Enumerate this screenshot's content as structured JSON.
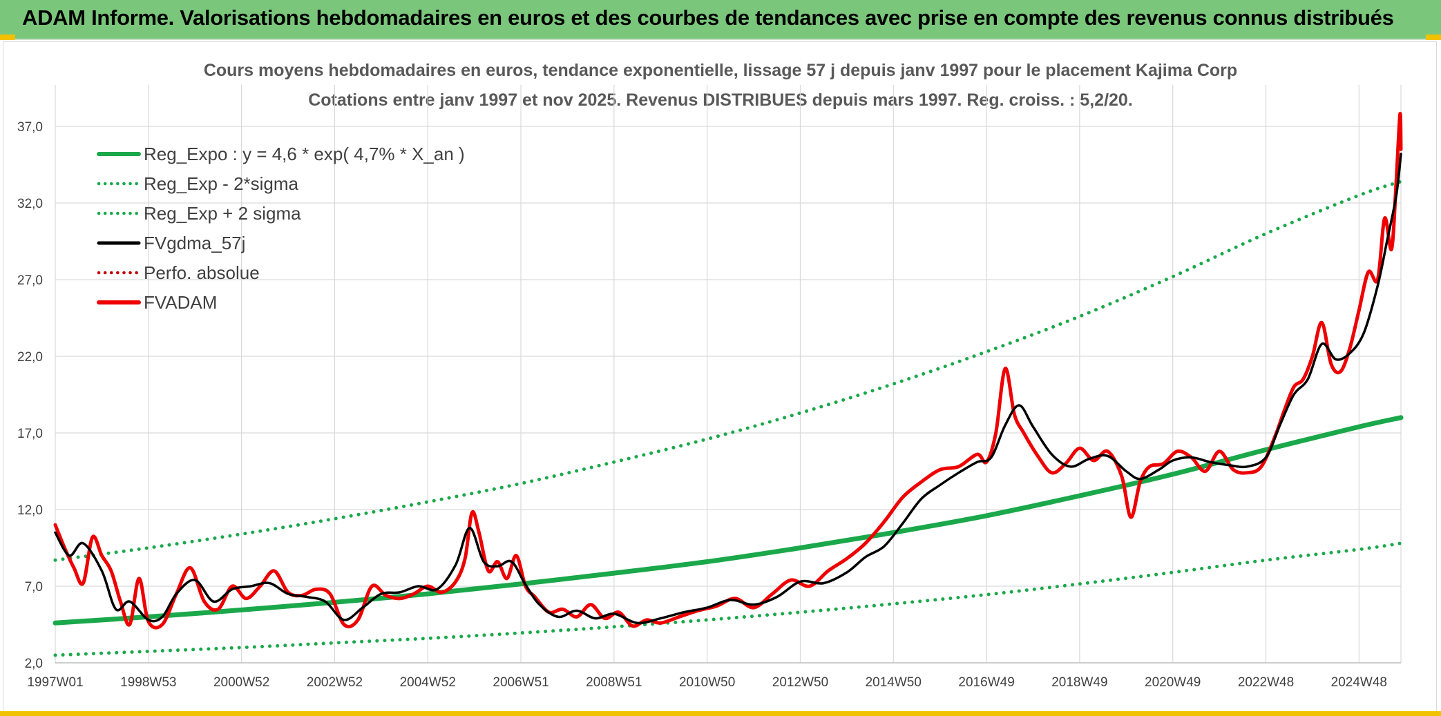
{
  "banner": {
    "title": "ADAM Informe. Valorisations hebdomadaires en euros et des courbes de tendances avec prise en compte des revenus connus distribués"
  },
  "colors": {
    "banner_bg": "#7ac77b",
    "reg_expo": "#1aa84b",
    "sigma_bands": "#1aa84b",
    "fvgdma": "#000000",
    "perfo": "#c00000",
    "fvadam": "#ee0000",
    "grid": "#d9d9d9"
  },
  "chart_data": {
    "type": "line",
    "title": "Cours moyens hebdomadaires en euros, tendance exponentielle, lissage 57 j depuis janv 1997 pour le placement Kajima Corp",
    "subtitle": "Cotations entre janv 1997 et nov 2025. Revenus DISTRIBUES depuis mars 1997. Reg. croiss. : 5,2/20.",
    "xlabel": "",
    "ylabel": "",
    "x_range": [
      1997.0,
      2025.9
    ],
    "ylim": [
      2.0,
      37.0
    ],
    "y_ticks": [
      "2,0",
      "7,0",
      "12,0",
      "17,0",
      "22,0",
      "27,0",
      "32,0",
      "37,0"
    ],
    "y_tick_values": [
      2,
      7,
      12,
      17,
      22,
      27,
      32,
      37
    ],
    "x_tick_labels": [
      "1997W01",
      "1998W53",
      "2000W52",
      "2002W52",
      "2004W52",
      "2006W51",
      "2008W51",
      "2010W50",
      "2012W50",
      "2014W50",
      "2016W49",
      "2018W49",
      "2020W49",
      "2022W48",
      "2024W48"
    ],
    "x_tick_values": [
      1997.0,
      1999.0,
      2001.0,
      2003.0,
      2005.0,
      2007.0,
      2009.0,
      2011.0,
      2013.0,
      2015.0,
      2017.0,
      2019.0,
      2021.0,
      2023.0,
      2025.0
    ],
    "grid": true,
    "legend_position": "top-left",
    "legend": [
      {
        "label": "Reg_Expo : y = 4,6 * exp( 4,7% *  X_an )",
        "style": "solid-thick",
        "color_key": "reg_expo"
      },
      {
        "label": "Reg_Exp - 2*sigma",
        "style": "dotted",
        "color_key": "sigma_bands"
      },
      {
        "label": "Reg_Exp + 2 sigma",
        "style": "dotted",
        "color_key": "sigma_bands"
      },
      {
        "label": "FVgdma_57j",
        "style": "solid",
        "color_key": "fvgdma"
      },
      {
        "label": "Perfo. absolue",
        "style": "dotted",
        "color_key": "perfo"
      },
      {
        "label": "FVADAM",
        "style": "solid-thick",
        "color_key": "fvadam"
      }
    ],
    "series": [
      {
        "name": "Reg_Expo : y = 4,6 * exp( 4,7% *  X_an )",
        "x": [
          1997.0,
          1999.0,
          2001.0,
          2003.0,
          2005.0,
          2007.0,
          2009.0,
          2011.0,
          2013.0,
          2015.0,
          2017.0,
          2019.0,
          2021.0,
          2023.0,
          2025.0,
          2025.9
        ],
        "y": [
          4.6,
          5.0,
          5.45,
          5.95,
          6.5,
          7.15,
          7.85,
          8.6,
          9.5,
          10.5,
          11.6,
          12.9,
          14.3,
          15.9,
          17.4,
          18.0
        ]
      },
      {
        "name": "Reg_Exp - 2*sigma",
        "x": [
          1997.0,
          1999.0,
          2001.0,
          2003.0,
          2005.0,
          2007.0,
          2009.0,
          2011.0,
          2013.0,
          2015.0,
          2017.0,
          2019.0,
          2021.0,
          2023.0,
          2025.0,
          2025.9
        ],
        "y": [
          2.5,
          2.75,
          3.0,
          3.3,
          3.6,
          3.95,
          4.35,
          4.8,
          5.3,
          5.85,
          6.45,
          7.15,
          7.9,
          8.7,
          9.4,
          9.8
        ]
      },
      {
        "name": "Reg_Exp + 2 sigma",
        "x": [
          1997.0,
          1999.0,
          2001.0,
          2003.0,
          2005.0,
          2007.0,
          2009.0,
          2011.0,
          2013.0,
          2015.0,
          2017.0,
          2019.0,
          2021.0,
          2023.0,
          2025.0,
          2025.9
        ],
        "y": [
          8.7,
          9.5,
          10.4,
          11.4,
          12.5,
          13.7,
          15.1,
          16.6,
          18.3,
          20.2,
          22.3,
          24.6,
          27.2,
          30.0,
          32.5,
          33.4
        ]
      },
      {
        "name": "FVgdma_57j",
        "x": [
          1997.0,
          1997.3,
          1997.6,
          1998.0,
          1998.3,
          1998.6,
          1999.0,
          1999.3,
          1999.6,
          2000.0,
          2000.4,
          2000.8,
          2001.2,
          2001.6,
          2002.0,
          2002.4,
          2002.8,
          2003.2,
          2003.6,
          2004.0,
          2004.4,
          2004.8,
          2005.2,
          2005.6,
          2005.9,
          2006.2,
          2006.5,
          2006.8,
          2007.1,
          2007.4,
          2007.8,
          2008.2,
          2008.6,
          2009.0,
          2009.5,
          2010.0,
          2010.5,
          2011.0,
          2011.5,
          2012.0,
          2012.5,
          2013.0,
          2013.5,
          2014.0,
          2014.4,
          2014.8,
          2015.2,
          2015.6,
          2016.0,
          2016.4,
          2016.8,
          2017.1,
          2017.4,
          2017.7,
          2018.0,
          2018.4,
          2018.8,
          2019.2,
          2019.6,
          2020.0,
          2020.3,
          2020.7,
          2021.0,
          2021.4,
          2021.8,
          2022.2,
          2022.6,
          2023.0,
          2023.3,
          2023.6,
          2023.9,
          2024.2,
          2024.5,
          2024.8,
          2025.1,
          2025.4,
          2025.6,
          2025.8,
          2025.9
        ],
        "y": [
          10.5,
          9.0,
          9.8,
          8.0,
          5.5,
          6.0,
          4.8,
          5.0,
          6.5,
          7.4,
          6.0,
          6.8,
          7.0,
          7.2,
          6.5,
          6.3,
          6.0,
          4.8,
          5.6,
          6.5,
          6.6,
          7.0,
          6.8,
          8.4,
          10.8,
          8.6,
          8.3,
          8.6,
          7.1,
          5.8,
          5.0,
          5.4,
          4.9,
          5.2,
          4.6,
          4.9,
          5.3,
          5.6,
          6.1,
          5.8,
          6.3,
          7.3,
          7.2,
          7.9,
          8.9,
          9.6,
          11.1,
          12.7,
          13.6,
          14.4,
          15.1,
          15.4,
          17.5,
          18.8,
          17.4,
          15.6,
          14.8,
          15.3,
          15.5,
          14.5,
          14.0,
          14.6,
          15.2,
          15.4,
          15.1,
          14.9,
          14.8,
          15.4,
          17.5,
          19.5,
          20.5,
          22.8,
          21.8,
          22.2,
          23.5,
          26.6,
          29.5,
          32.5,
          35.2
        ]
      },
      {
        "name": "FVADAM",
        "x": [
          1997.0,
          1997.2,
          1997.4,
          1997.6,
          1997.8,
          1998.0,
          1998.2,
          1998.4,
          1998.6,
          1998.8,
          1999.0,
          1999.3,
          1999.6,
          1999.9,
          2000.2,
          2000.5,
          2000.8,
          2001.1,
          2001.4,
          2001.7,
          2002.0,
          2002.3,
          2002.6,
          2002.9,
          2003.2,
          2003.5,
          2003.8,
          2004.1,
          2004.4,
          2004.7,
          2005.0,
          2005.3,
          2005.6,
          2005.8,
          2005.95,
          2006.1,
          2006.3,
          2006.5,
          2006.7,
          2006.9,
          2007.1,
          2007.3,
          2007.6,
          2007.9,
          2008.2,
          2008.5,
          2008.8,
          2009.1,
          2009.4,
          2009.7,
          2010.0,
          2010.4,
          2010.8,
          2011.2,
          2011.6,
          2012.0,
          2012.4,
          2012.8,
          2013.2,
          2013.6,
          2014.0,
          2014.4,
          2014.8,
          2015.2,
          2015.6,
          2016.0,
          2016.4,
          2016.8,
          2017.0,
          2017.2,
          2017.4,
          2017.6,
          2017.8,
          2018.1,
          2018.4,
          2018.7,
          2019.0,
          2019.3,
          2019.6,
          2019.9,
          2020.1,
          2020.3,
          2020.5,
          2020.8,
          2021.1,
          2021.4,
          2021.7,
          2022.0,
          2022.3,
          2022.6,
          2022.9,
          2023.2,
          2023.4,
          2023.6,
          2023.8,
          2024.0,
          2024.2,
          2024.4,
          2024.6,
          2024.8,
          2025.0,
          2025.2,
          2025.4,
          2025.55,
          2025.7,
          2025.8,
          2025.88,
          2025.9
        ],
        "y": [
          11.0,
          9.5,
          8.2,
          7.2,
          10.2,
          9.0,
          8.0,
          6.0,
          4.5,
          7.5,
          4.7,
          4.5,
          6.5,
          8.2,
          6.0,
          5.5,
          7.0,
          6.2,
          7.0,
          8.0,
          6.6,
          6.4,
          6.8,
          6.5,
          4.5,
          4.8,
          7.0,
          6.4,
          6.2,
          6.5,
          7.0,
          6.6,
          7.3,
          8.8,
          11.8,
          10.5,
          8.0,
          8.6,
          7.5,
          9.0,
          7.0,
          6.3,
          5.3,
          5.5,
          5.0,
          5.8,
          4.9,
          5.3,
          4.4,
          4.8,
          4.6,
          5.0,
          5.4,
          5.7,
          6.2,
          5.6,
          6.5,
          7.4,
          7.0,
          8.0,
          8.8,
          9.8,
          11.2,
          12.8,
          13.8,
          14.6,
          14.8,
          15.6,
          15.1,
          17.0,
          21.2,
          18.2,
          17.0,
          15.5,
          14.4,
          15.0,
          16.0,
          15.2,
          15.8,
          14.2,
          11.5,
          13.8,
          14.8,
          15.0,
          15.8,
          15.4,
          14.5,
          15.8,
          14.6,
          14.4,
          14.8,
          16.8,
          18.5,
          20.0,
          20.5,
          22.0,
          24.2,
          21.5,
          21.0,
          22.5,
          25.0,
          27.5,
          27.0,
          31.0,
          29.0,
          33.5,
          37.8,
          35.5
        ]
      }
    ]
  }
}
